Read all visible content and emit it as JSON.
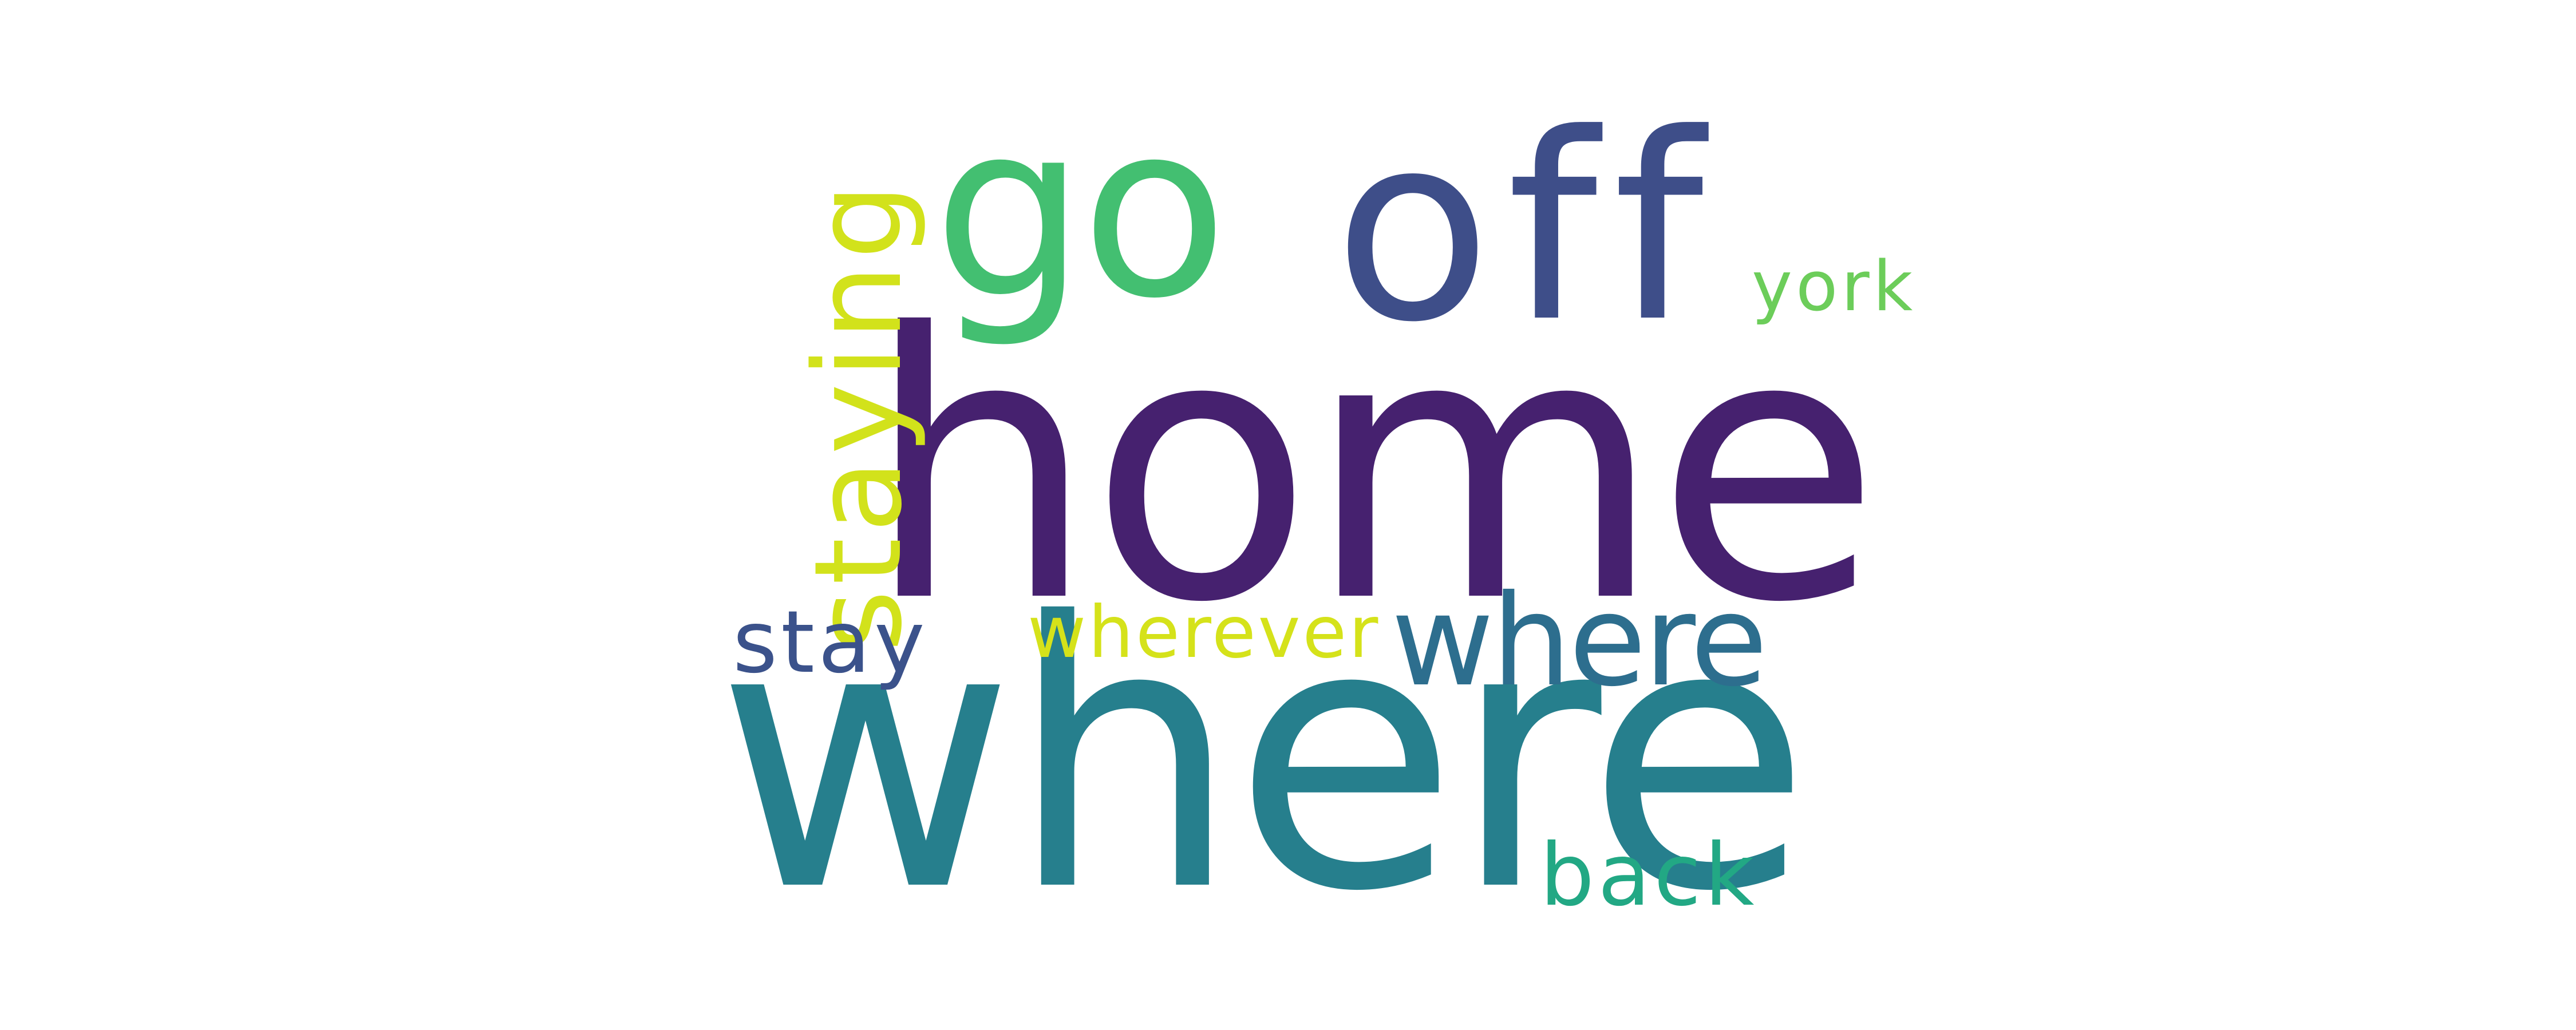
{
  "word_cloud": {
    "words": [
      {
        "text": "home",
        "color": "#46216f"
      },
      {
        "text": "where",
        "color": "#267f8d"
      },
      {
        "text": "go",
        "color": "#43bf71"
      },
      {
        "text": "off",
        "color": "#3e4e89"
      },
      {
        "text": "staying",
        "color": "#d2e21b"
      },
      {
        "text": "york",
        "color": "#6ccd5a"
      },
      {
        "text": "stay",
        "color": "#3b528b"
      },
      {
        "text": "wherever",
        "color": "#d5e21a"
      },
      {
        "text": "where",
        "color": "#2d6e8e"
      },
      {
        "text": "back",
        "color": "#22a884"
      }
    ]
  }
}
